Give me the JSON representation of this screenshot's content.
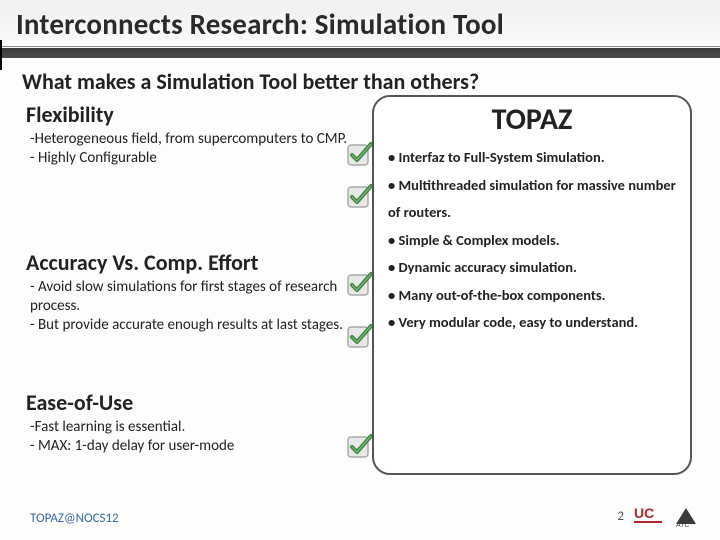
{
  "title": "Interconnects Research: Simulation Tool",
  "subtitle": "What makes a Simulation Tool better than others?",
  "left_sections": [
    {
      "heading": "Flexibility",
      "body": "-Heterogeneous field, from supercomputers to CMP.\n- Highly Configurable"
    },
    {
      "heading": "Accuracy Vs. Comp. Effort",
      "body": "- Avoid slow simulations for first stages of research process.\n- But provide accurate enough results at last stages."
    },
    {
      "heading": "Ease-of-Use",
      "body": "-Fast learning is essential.\n- MAX: 1-day delay for user-mode"
    }
  ],
  "topaz": {
    "title": "TOPAZ",
    "features": [
      "• Interfaz to Full-System Simulation.",
      "• Multithreaded simulation for massive number of routers.",
      "• Simple & Complex models.",
      "• Dynamic accuracy simulation.",
      "• Many out-of-the-box components.",
      "• Very modular code, easy to understand."
    ]
  },
  "footer": {
    "left": "TOPAZ@NOCS12",
    "page": "2"
  },
  "colors": {
    "check_fill": "#e8e8e8",
    "check_border": "#9a9a9a",
    "check_tick": "#3a8a3a",
    "uc_red": "#b0252a",
    "atc_dark": "#3a3a3a"
  }
}
